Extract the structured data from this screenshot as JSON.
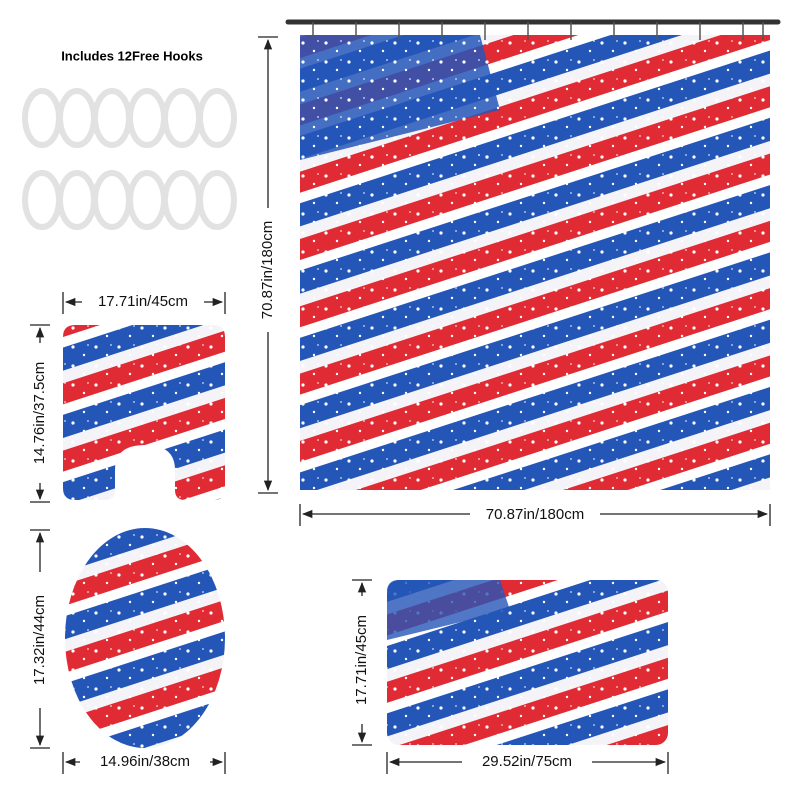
{
  "hooks_label": "Includes 12Free Hooks",
  "curtain": {
    "height": "70.87in/180cm",
    "width": "70.87in/180cm"
  },
  "contour_mat": {
    "width": "17.71in/45cm",
    "height": "14.76in/37.5cm"
  },
  "lid_cover": {
    "height": "17.32in/44cm",
    "width": "14.96in/38cm"
  },
  "bath_mat": {
    "height": "17.71in/45cm",
    "width": "29.52in/75cm"
  }
}
